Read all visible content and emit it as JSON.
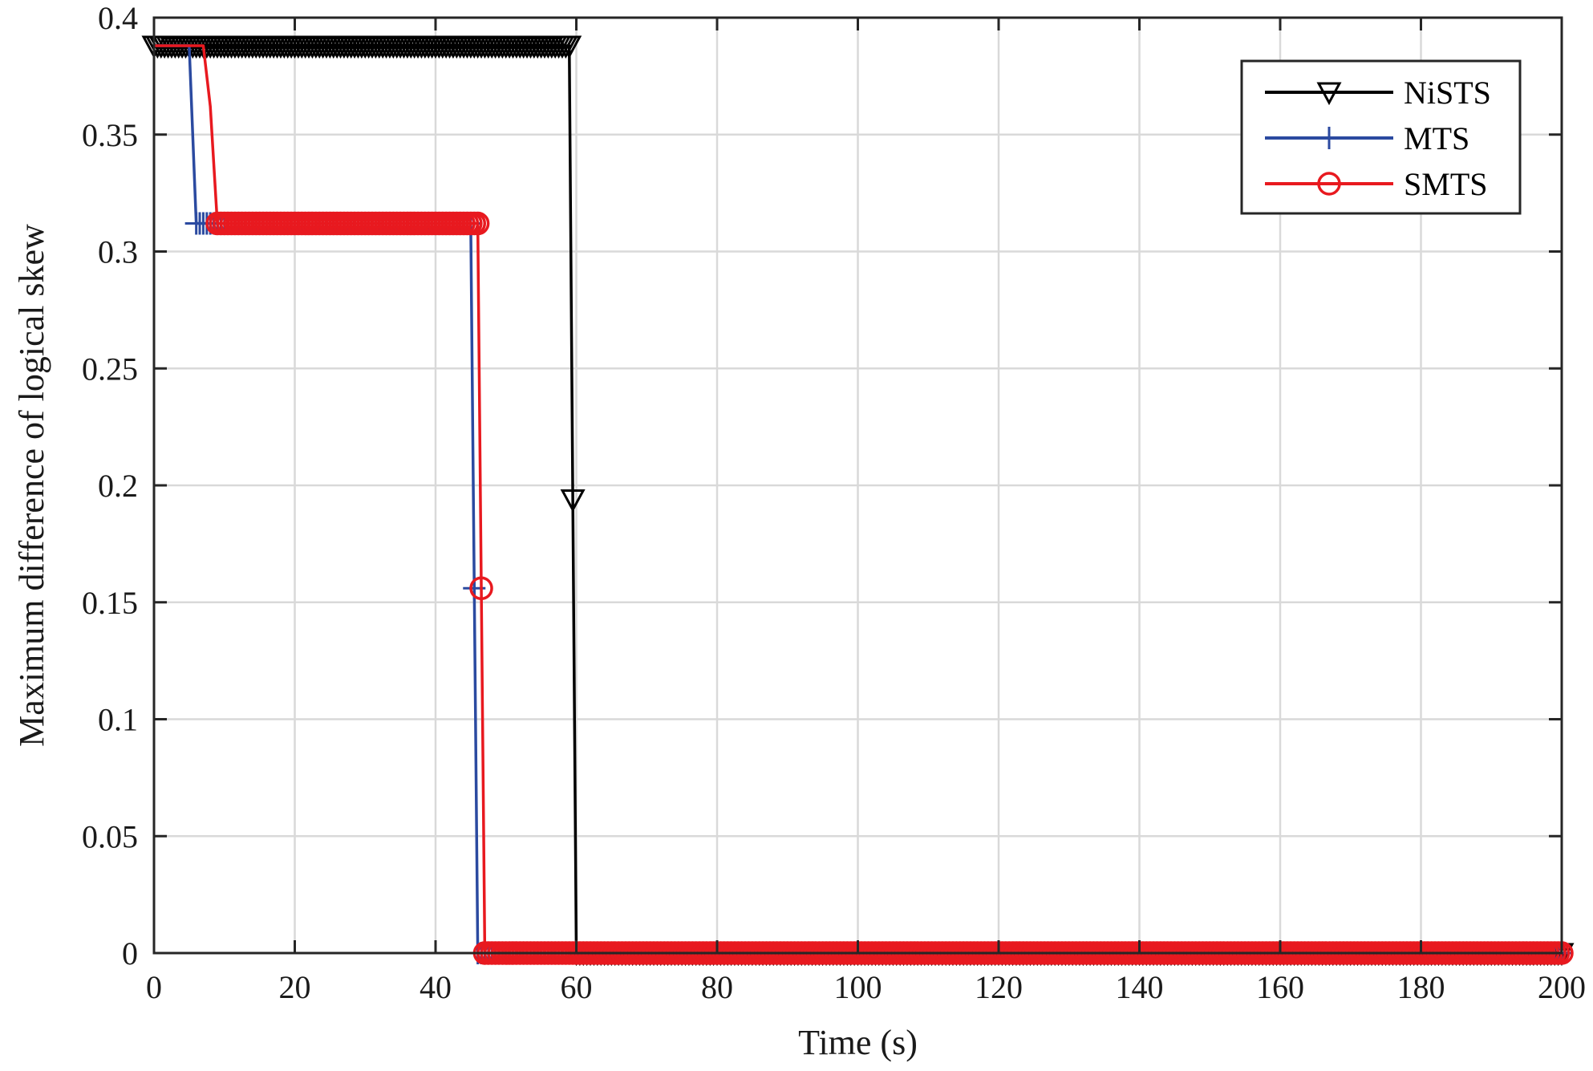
{
  "chart_data": {
    "type": "line",
    "xlabel": "Time (s)",
    "ylabel": "Maximum difference of logical skew",
    "xlim": [
      0,
      200
    ],
    "ylim": [
      0,
      0.4
    ],
    "xticks": [
      0,
      20,
      40,
      60,
      80,
      100,
      120,
      140,
      160,
      180,
      200
    ],
    "yticks": [
      0,
      0.05,
      0.1,
      0.15,
      0.2,
      0.25,
      0.3,
      0.35,
      0.4
    ],
    "xtick_labels": [
      "0",
      "20",
      "40",
      "60",
      "80",
      "100",
      "120",
      "140",
      "160",
      "180",
      "200"
    ],
    "ytick_labels": [
      "0",
      "0.05",
      "0.1",
      "0.15",
      "0.2",
      "0.25",
      "0.3",
      "0.35",
      "0.4"
    ],
    "grid": true,
    "legend_position": "top-right",
    "series": [
      {
        "name": "NiSTS",
        "color": "#000000",
        "marker": "triangle-down",
        "points": [
          [
            0,
            0.388
          ],
          [
            59,
            0.388
          ],
          [
            60,
            0.0
          ],
          [
            200,
            0.0
          ]
        ],
        "marker_x": {
          "start": 0,
          "end": 200,
          "step": 0.5
        }
      },
      {
        "name": "MTS",
        "color": "#2b4aa0",
        "marker": "plus",
        "points": [
          [
            0,
            0.388
          ],
          [
            5,
            0.388
          ],
          [
            6,
            0.312
          ],
          [
            45,
            0.312
          ],
          [
            46,
            0.0
          ],
          [
            200,
            0.0
          ]
        ],
        "marker_x": {
          "start": 6,
          "end": 200,
          "step": 0.5
        }
      },
      {
        "name": "SMTS",
        "color": "#e8191f",
        "marker": "circle",
        "points": [
          [
            0,
            0.388
          ],
          [
            7,
            0.388
          ],
          [
            8,
            0.362
          ],
          [
            9,
            0.312
          ],
          [
            46,
            0.312
          ],
          [
            47,
            0.0
          ],
          [
            200,
            0.0
          ]
        ],
        "marker_x": {
          "start": 9,
          "end": 200,
          "step": 0.5
        }
      }
    ]
  }
}
